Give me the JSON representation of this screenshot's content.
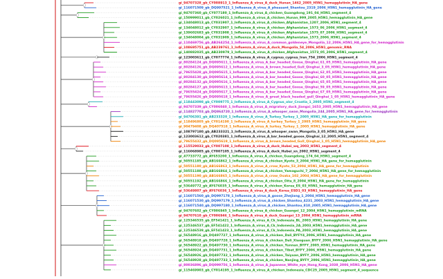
{
  "tree": {
    "leaves": [
      {
        "label": "gi_94707328_gb_CY008913_1_Influenza_A_virus_A_duck_Hunan_1462_2005_H5N1_hemagglutinin_HA_gene",
        "color": "#e0141e"
      },
      {
        "label": "gi_116071509_gb_DQ997521_1_Influenza_A_virus_A_pheasant_Shantou_2319_2006_H5N1_hemagglutinin_HA_gene",
        "color": "#1f5fd0"
      },
      {
        "label": "gi_94707360_gb_CY077180_1_Influenza_A_virus_A_chicken_Guangdong_191_04_H5N1_segment_4",
        "color": "#1a9a1a"
      },
      {
        "label": "gi_150999011_gb_CY026021_1_Influenza_A_virus_A_chicken_Hunan_999_2005_H5N1_hemagglutinin_HA_gene",
        "color": "#1a9a1a"
      },
      {
        "label": "gi_134048013_gb_CY031907_1_Influenza_A_virus_A_chicken_Afghanistan_1207_2006_H5N1_segment_4",
        "color": "#1a9a1a"
      },
      {
        "label": "gi_134048012_gb_CY032907_1_Influenza_A_virus_A_chicken_Afghanistan_1573_06_2006_H5N1_segment_4",
        "color": "#1a9a1a"
      },
      {
        "label": "gi_139602683_gb_CY031908_1_Influenza_A_virus_A_chicken_Afghanistan_1575_07_2006_H5N1_segment_4",
        "color": "#1a9a1a"
      },
      {
        "label": "gi_134048004_gb_CY031909_1_Influenza_A_virus_A_chicken_Afghanistan_1573_2006_H5N1_segment_4",
        "color": "#1a9a1a"
      },
      {
        "label": "gi_110469756_gb_AB264254_1_Influenza_A_virus_A_common_goldeneye_Mongolia_12_2006_H5N1_HA_gene_for_hemagglutinin",
        "color": "#d020c8"
      },
      {
        "label": "gi_108695751_gb_AB239761_1_Influenza_A_virus_A_duck_Mongolia_54_2006_H5N1_genomic_RNA",
        "color": "#e0141e"
      },
      {
        "label": "gi_140882035_gb_AB230979_1_Influenza_A_virus_A_chicken_Afghanistan_1573_05_2006_H5N1_segment_4",
        "color": "#1a9a1a"
      },
      {
        "label": "gi_123003611_gb_CY077774_1_Influenza_A_virus_A_cygnus_cygnus_Iran_754_2006_H5N1_segment_4",
        "color": "#222222"
      },
      {
        "label": "gi_80284124_gb_DQ095611_1_Influenza_A_virus_A_bar_headed_Goose_Qinghai_61_05_H5N1_hemagglutinin_HA_gene",
        "color": "#d020c8"
      },
      {
        "label": "gi_80284126_gb_DQ095612_1_Influenza_A_virus_A_brown_headed_Gull_Qinghai_3_05_H5N1_hemagglutinin_HA_gene",
        "color": "#d020c8"
      },
      {
        "label": "gi_79655428_gb_DQ095615_1_Influenza_A_virus_A_bar_headed_Goose_Qinghai_62_05_H5N1_hemagglutinin_HA_gene",
        "color": "#d020c8"
      },
      {
        "label": "gi_80284130_gb_DQ095614_1_Influenza_A_virus_A_bar_headed_Goose_Qinghai_60_05_H5N1_hemagglutinin_HA_gene",
        "color": "#d020c8"
      },
      {
        "label": "gi_80284132_gb_DQ095616_1_Influenza_A_virus_A_bar_headed_Goose_Qinghai_65_05_H5N1_hemagglutinin_HA_gene",
        "color": "#d020c8"
      },
      {
        "label": "gi_80284127_gb_DQ095613_1_Influenza_A_virus_A_bar_headed_Goose_Qinghai_59_05_H5N1_hemagglutinin_HA_gene",
        "color": "#d020c8"
      },
      {
        "label": "gi_79655424_gb_DQ095617_1_Influenza_A_virus_A_bar_headed_Goose_Qinghai_67_05_H5N1_hemagglutinin_HA_gene",
        "color": "#d020c8"
      },
      {
        "label": "gi_79655426_gb_DQ095618_1_Influenza_A_virus_A_great_black_headed_gull_Qinghai_1_05_H5N1_hemagglutinin_HA_gene",
        "color": "#d020c8"
      },
      {
        "label": "gi_118443098_gb_CY009775_1_Influenza_A_virus_A_Cygnus_olor_Croatia_1_2005_H5N1_segment_4",
        "color": "#10a8b0"
      },
      {
        "label": "gi_94707339_gb_CY006040_1_Influenza_A_virus_A_migratory_duck_Jiangxi_1653_2005_H5N1_hemagglutinin_HA_gene",
        "color": "#d020c8"
      },
      {
        "label": "gi_114827703_gb_DQ864720_1_Influenza_A_virus_A_whooper_swan_Mongolia_244_2005_H5N1_HA_gene_for_hemagglutinin",
        "color": "#9a30c0"
      },
      {
        "label": "gi_94706391_gb_AB233320_1_Influenza_A_virus_A_Turkey_Turkey_1_2005_H5N1_HA_gene_for_hemagglutinin",
        "color": "#10a8b0"
      },
      {
        "label": "gi_118496805_gb_CY014190_1_Influenza_A_virus_A_turkey_Turkey_1_2005_H5N1_hemagglutinin_HA_gene",
        "color": "#f08000"
      },
      {
        "label": "gi_90479408_gb_DQ407518_1_Influenza_A_virus_A_turkey_Turkey_1_2005_H5N1_hemagglutinin_HA_gene",
        "color": "#f08000"
      },
      {
        "label": "gi_108797180_gb_AB233321_1_Influenza_A_virus_A_whooper_swan_Mongolia_3_05_H5N1_HA_gene",
        "color": "#222222"
      },
      {
        "label": "gi_123003612_gb_CY020381_1_Influenza_A_virus_A_bar_headed_goose_Qinghai_12_2005_H5N1_segment_4",
        "color": "#222222"
      },
      {
        "label": "gi_79655432_gb_DQ095619_1_Influenza_A_virus_A_brown_headed_Gull_Qinghai_1_05_H5N1_hemagglutinin_HA_gene",
        "color": "#f08000"
      },
      {
        "label": "gi_115529033_gb_CY007108_1_Influenza_A_virus_A_duck_Hubei_wq_2003_H5N1_segment_4",
        "color": "#e0141e"
      },
      {
        "label": "gi_116068985_gb_CY007105_1_Influenza_A_virus_A_duck_Hubei_xn_2002_H5N1_segment_4",
        "color": "#222222"
      },
      {
        "label": "gi_47733772_gb_AY653200_1_Influenza_A_virus_A_chicken_Guangdong_174_04_H5N1_segment_4",
        "color": "#1a9a1a"
      },
      {
        "label": "gi_50551185_gb_AB166862_1_Influenza_A_virus_A_chicken_Kyoto_3_2004_H5N1_HA_gene_for_hemagglutinin",
        "color": "#1a9a1a"
      },
      {
        "label": "gi_50551180_gb_AB166863_1_Influenza_A_virus_A_crow_Kyoto_53_2004_H5N1_HA_gene_for_hemagglutinin",
        "color": "#f08000"
      },
      {
        "label": "gi_50551188_gb_AB166864_1_Influenza_A_virus_A_chicken_Yamaguchi_7_2004_H5N1_HA_gene_for_hemagglutinin",
        "color": "#1a9a1a"
      },
      {
        "label": "gi_50551190_gb_AB166865_1_Influenza_A_virus_A_crow_Osaka_102_2004_H5N1_HA_gene_for_hemagglutinin",
        "color": "#f08000"
      },
      {
        "label": "gi_50551192_gb_AB166866_1_Influenza_A_virus_A_chicken_Oita_8_2004_H5N1_HA_gene_for_hemagglutinin",
        "color": "#1a9a1a"
      },
      {
        "label": "gi_53649772_gb_AY676035_1_Influenza_A_virus_A_chicken_Korea_ES_03_H5N1_hemagglutinin_HA_gene",
        "color": "#1a9a1a"
      },
      {
        "label": "gi_53649807_gb_AY676036_1_Influenza_A_virus_A_duck_Korea_ESD1_03_H5N1_hemagglutinin_HA_gene",
        "color": "#e0141e"
      },
      {
        "label": "gi_116071560_gb_DQ997178_1_Influenza_A_virus_A_goose_Zhejiang_1_2004_H5N1_hemagglutinin_HA_gene",
        "color": "#1f5fd0"
      },
      {
        "label": "gi_116071530_gb_DQ997179_1_Influenza_A_virus_A_chicken_Shantou_4231_2003_H5N1_hemagglutinin_HA_gene",
        "color": "#1f5fd0"
      },
      {
        "label": "gi_116071540_gb_DQ997180_1_Influenza_A_virus_A_chicken_Shantou_810_2005_H5N1_hemagglutinin_HA_gene",
        "color": "#1f5fd0"
      },
      {
        "label": "gi_94707602_gb_CY006945_1_Influenza_A_virus_A_chicken_Guangxi_12_2004_H5N1_hemagglutinin_mRNA",
        "color": "#1a9a1a"
      },
      {
        "label": "gi_94707610_gb_CY006946_1_Influenza_A_virus_A_duck_Guangxi_13_2004_H5N1_hemagglutinin_mRNA",
        "color": "#e0141e"
      },
      {
        "label": "gi_125346535_gb_EF541421_1_Influenza_A_virus_A_Ck_Indonesia_BL_2003_H5N1_hemagglutinin_HA_gene",
        "color": "#1a9a1a"
      },
      {
        "label": "gi_125346537_gb_EF541422_1_Influenza_A_virus_A_Ck_Indonesia_2A_2003_H5N1_hemagglutinin_HA_gene",
        "color": "#1a9a1a"
      },
      {
        "label": "gi_125346539_gb_EF541423_1_Influenza_A_virus_A_Ck_Indonesia_PA_2003_H5N1_hemagglutinin_HA_gene",
        "color": "#1a9a1a"
      },
      {
        "label": "gi_56548916_gb_DQ497727_1_Influenza_A_virus_A_chicken_Dali_BYFY4_2006_H5N1_hemagglutinin_HA_gene",
        "color": "#1a9a1a"
      },
      {
        "label": "gi_56548918_gb_DQ497728_1_Influenza_A_virus_A_chicken_Dali_Xiaoguan_BYFY_2006_H5N1_hemagglutinin_HA_gene",
        "color": "#1a9a1a"
      },
      {
        "label": "gi_56548922_gb_DQ497730_1_Influenza_A_virus_A_chicken_Yunnan_BYFY_2005_H5N1_hemagglutinin_HA_gene",
        "color": "#1a9a1a"
      },
      {
        "label": "gi_56548924_gb_DQ497731_1_Influenza_A_virus_A_chicken_Tibet_BYFY_2006_H5N1_hemagglutinin_HA_gene",
        "color": "#1a9a1a"
      },
      {
        "label": "gi_56548926_gb_DQ497732_1_Influenza_A_virus_A_chicken_Taiyuan_BYFY_2006_H5N1_hemagglutinin_HA_gene",
        "color": "#1a9a1a"
      },
      {
        "label": "gi_56548928_gb_DQ497733_1_Influenza_A_virus_A_chicken_Nanjing_BYFY_2006_H5N1_hemagglutinin_HA_gene",
        "color": "#1a9a1a"
      },
      {
        "label": "gi_80036896_gb_DQ099756_1_Influenza_A_virus_A_Japanese_White_eye_Hong_Kong_1038_2006_H5N1_HA_gene",
        "color": "#d020c8"
      },
      {
        "label": "gi_115469903_gb_CY014195_1_Influenza_A_virus_A_chicken_Indonesia_CDC25_2005_H5N1_segment_4_sequence",
        "color": "#1a9a1a"
      }
    ]
  }
}
